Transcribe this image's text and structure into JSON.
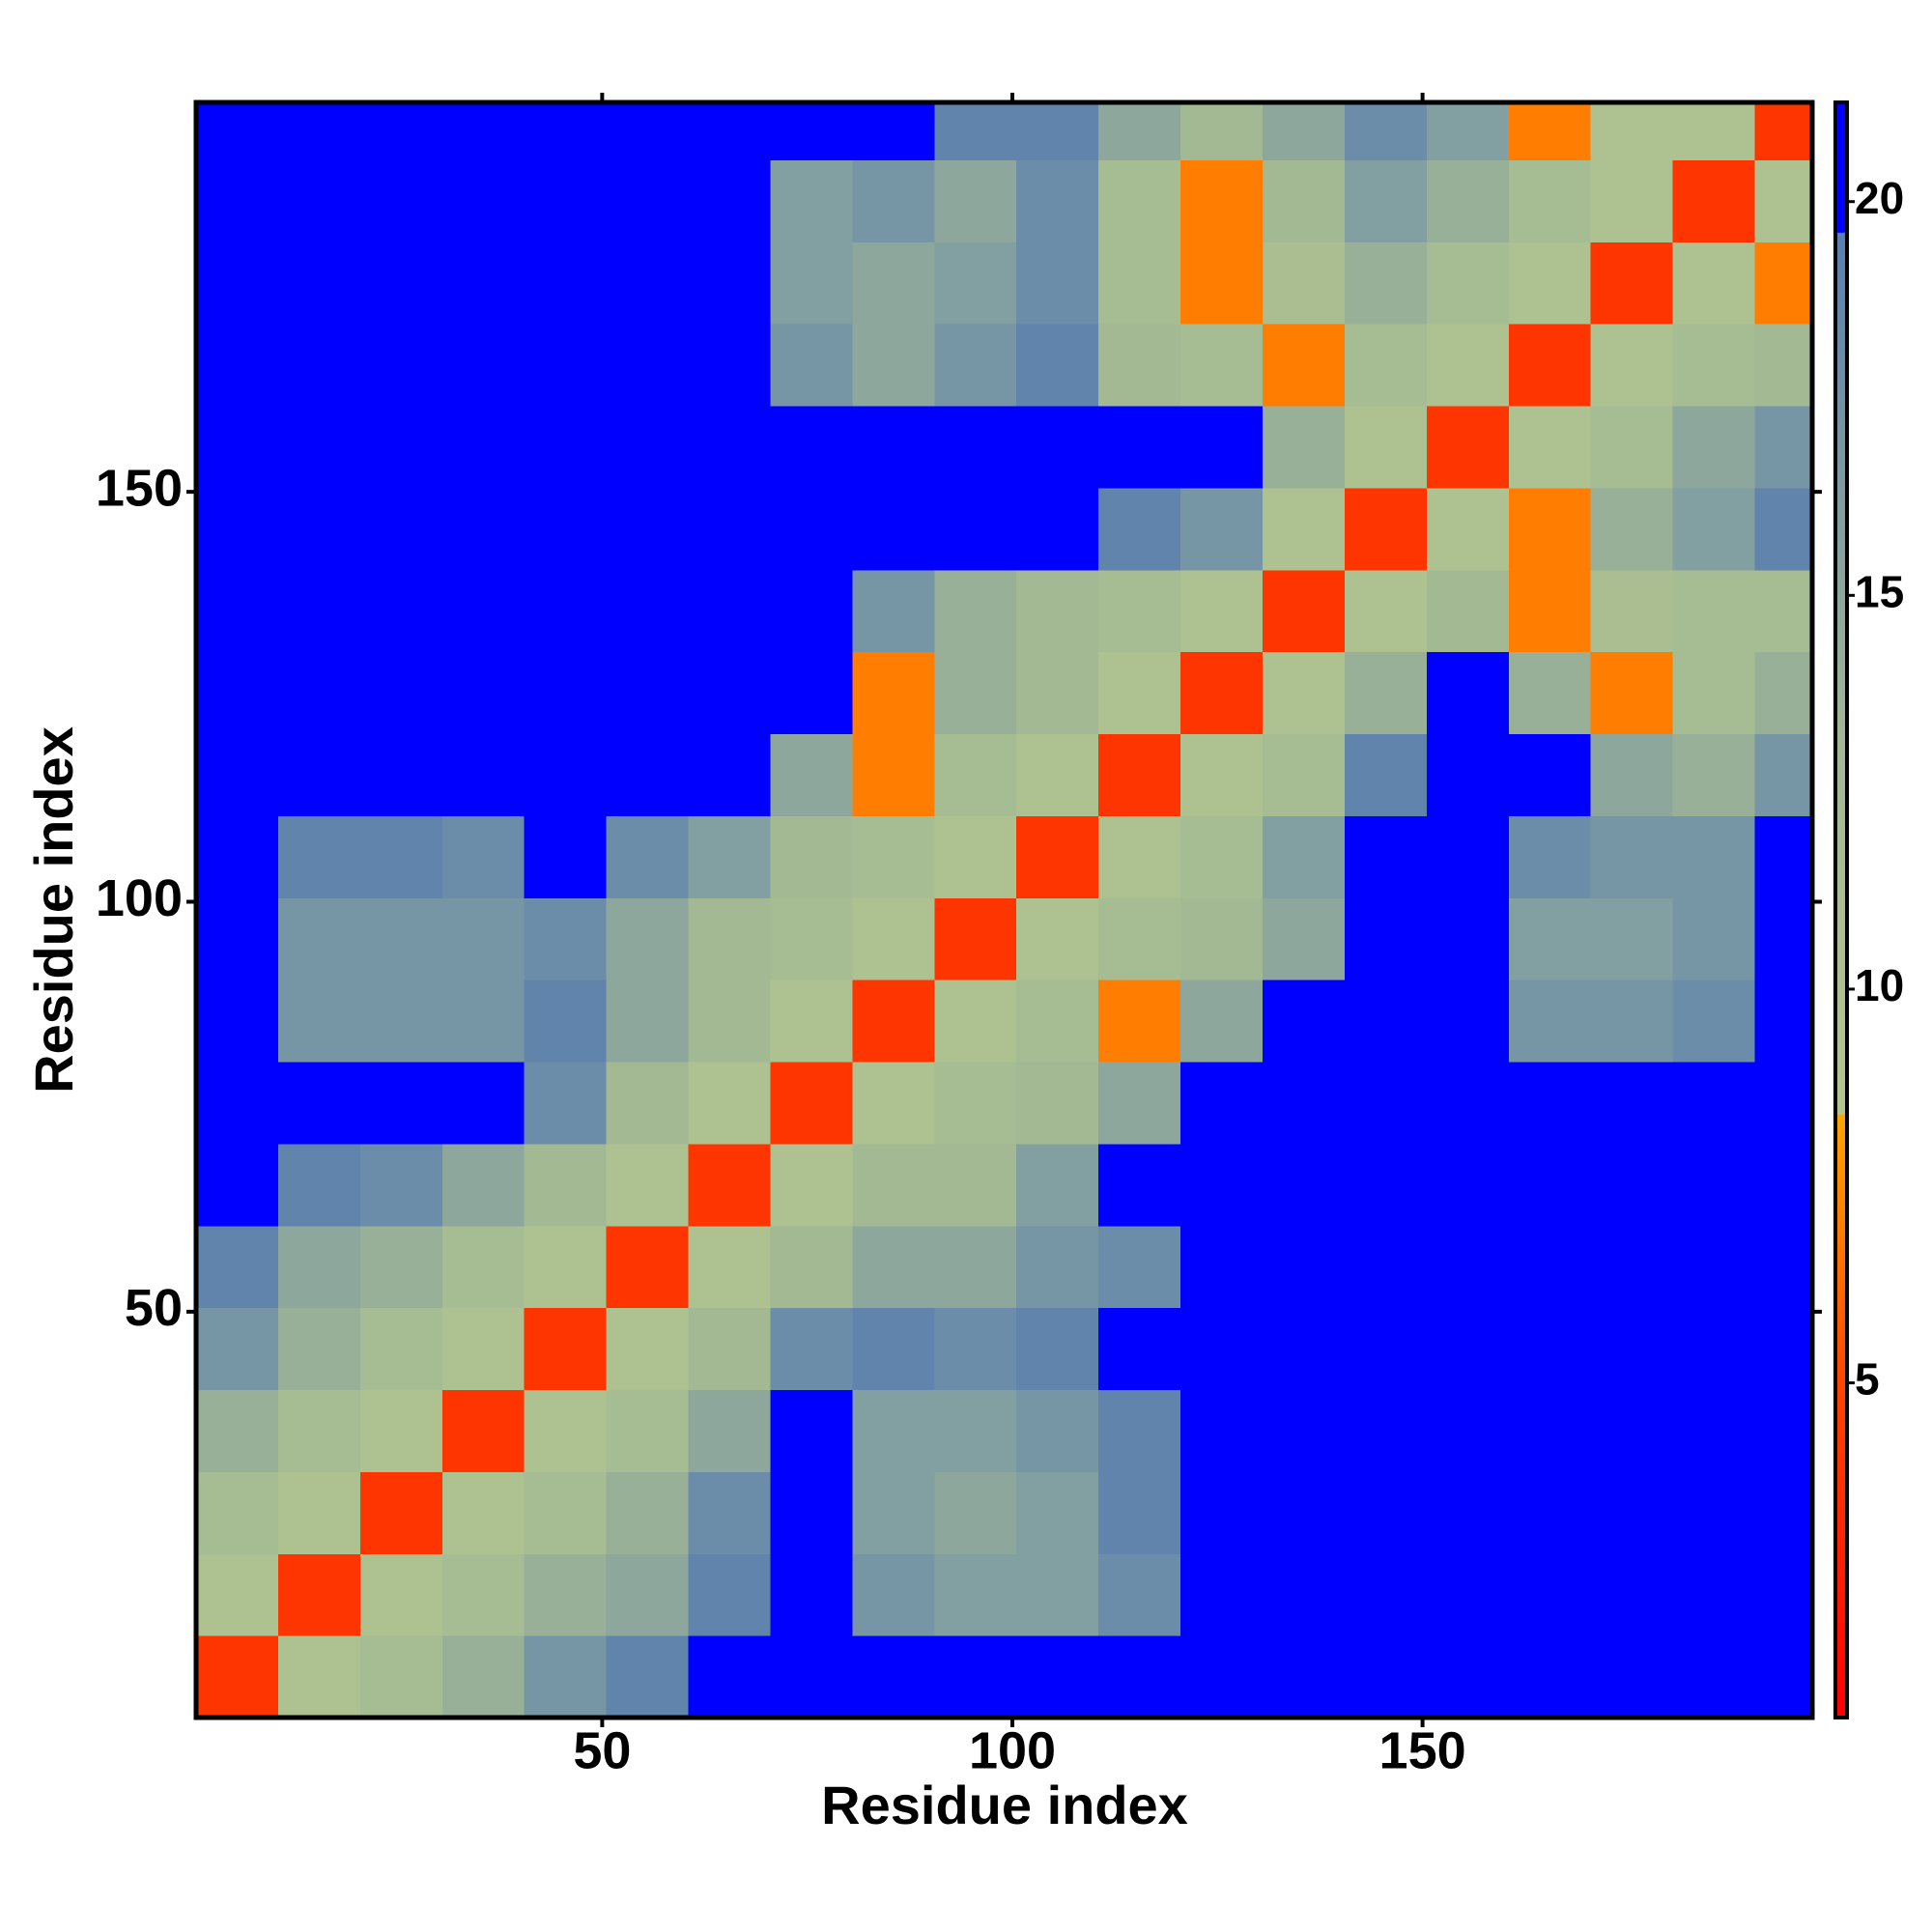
{
  "chart_data": {
    "type": "heatmap",
    "xlabel": "Residue index",
    "ylabel": "Residue index",
    "xlim": [
      0.5,
      197.5
    ],
    "ylim": [
      0.5,
      197.5
    ],
    "xticks": [
      50,
      100,
      150
    ],
    "yticks": [
      50,
      100,
      150
    ],
    "xbins": [
      0.5,
      10.5,
      20.5,
      30.5,
      40.5,
      50.5,
      60.5,
      70.5,
      80.5,
      90.5,
      100.5,
      110.5,
      120.5,
      130.5,
      140.5,
      150.5,
      160.5,
      170.5,
      180.5,
      190.5,
      197.5
    ],
    "ybins": [
      0.5,
      10.5,
      20.5,
      30.5,
      40.5,
      50.5,
      60.5,
      70.5,
      80.5,
      90.5,
      100.5,
      110.5,
      120.5,
      130.5,
      140.5,
      150.5,
      160.5,
      170.5,
      180.5,
      190.5,
      197.5
    ],
    "z": [
      [
        4,
        10,
        12,
        14,
        17,
        19,
        21,
        21,
        21,
        21,
        21,
        21,
        21,
        21,
        21,
        21,
        21,
        21,
        21,
        21
      ],
      [
        10,
        4,
        10,
        12,
        14,
        15,
        19,
        21,
        17,
        16,
        16,
        18,
        21,
        21,
        21,
        21,
        21,
        21,
        21,
        21
      ],
      [
        12,
        10,
        4,
        10,
        12,
        14,
        18,
        21,
        16,
        15,
        16,
        19,
        21,
        21,
        21,
        21,
        21,
        21,
        21,
        21
      ],
      [
        14,
        12,
        10,
        4,
        10,
        12,
        15,
        21,
        16,
        16,
        17,
        19,
        21,
        21,
        21,
        21,
        21,
        21,
        21,
        21
      ],
      [
        17,
        14,
        12,
        10,
        4,
        10,
        13,
        18,
        19,
        18,
        19,
        21,
        21,
        21,
        21,
        21,
        21,
        21,
        21,
        21
      ],
      [
        19,
        15,
        14,
        12,
        10,
        4,
        10,
        13,
        15,
        15,
        17,
        18,
        21,
        21,
        21,
        21,
        21,
        21,
        21,
        21
      ],
      [
        21,
        19,
        18,
        15,
        13,
        10,
        4,
        10,
        13,
        13,
        16,
        21,
        21,
        21,
        21,
        21,
        21,
        21,
        21,
        21
      ],
      [
        21,
        21,
        21,
        21,
        18,
        13,
        10,
        4,
        10,
        12,
        13,
        15,
        21,
        21,
        21,
        21,
        21,
        21,
        21,
        21
      ],
      [
        21,
        17,
        17,
        17,
        19,
        15,
        13,
        10,
        4,
        10,
        12,
        7,
        15,
        21,
        21,
        21,
        17,
        17,
        18,
        21
      ],
      [
        21,
        17,
        17,
        17,
        18,
        15,
        13,
        12,
        10,
        4,
        10,
        12,
        13,
        15,
        21,
        21,
        16,
        16,
        17,
        21
      ],
      [
        21,
        19,
        19,
        18,
        21,
        18,
        16,
        13,
        12,
        10,
        4,
        10,
        12,
        16,
        21,
        21,
        18,
        17,
        17,
        21
      ],
      [
        21,
        21,
        21,
        21,
        21,
        21,
        21,
        15,
        7,
        12,
        10,
        4,
        10,
        12,
        19,
        21,
        21,
        15,
        14,
        17
      ],
      [
        21,
        21,
        21,
        21,
        21,
        21,
        21,
        21,
        7,
        14,
        13,
        10,
        4,
        10,
        14,
        21,
        14,
        7,
        12,
        14
      ],
      [
        21,
        21,
        21,
        21,
        21,
        21,
        21,
        21,
        17,
        14,
        13,
        12,
        10,
        4,
        10,
        13,
        7,
        11,
        12,
        12
      ],
      [
        21,
        21,
        21,
        21,
        21,
        21,
        21,
        21,
        21,
        21,
        21,
        19,
        17,
        10,
        4,
        10,
        7,
        14,
        16,
        19
      ],
      [
        21,
        21,
        21,
        21,
        21,
        21,
        21,
        21,
        21,
        21,
        21,
        21,
        21,
        14,
        10,
        4,
        10,
        12,
        15,
        17
      ],
      [
        21,
        21,
        21,
        21,
        21,
        21,
        21,
        17,
        15,
        17,
        19,
        13,
        12,
        7,
        12,
        10,
        4,
        10,
        12,
        13
      ],
      [
        21,
        21,
        21,
        21,
        21,
        21,
        21,
        16,
        15,
        16,
        18,
        12,
        7,
        11,
        14,
        12,
        10,
        4,
        10,
        7
      ],
      [
        21,
        21,
        21,
        21,
        21,
        21,
        21,
        16,
        17,
        15,
        18,
        12,
        7,
        13,
        16,
        14,
        12,
        10,
        4,
        10
      ],
      [
        21,
        21,
        21,
        21,
        21,
        21,
        21,
        21,
        21,
        19,
        19,
        15,
        13,
        15,
        18,
        16,
        7,
        10,
        10,
        4
      ]
    ],
    "colorscale": [
      [
        0.75,
        "#ff0000"
      ],
      [
        5,
        "#ff4500"
      ],
      [
        8.4,
        "#ffa500"
      ],
      [
        8.41,
        "#b3c58f"
      ],
      [
        13,
        "#a3b994"
      ],
      [
        19.6,
        "#5a7fb0"
      ],
      [
        19.61,
        "#0000ff"
      ],
      [
        21.26,
        "#0000ff"
      ]
    ],
    "colorbar": {
      "lim": [
        0.75,
        21.26
      ],
      "ticks": [
        5,
        10,
        15,
        20
      ]
    }
  }
}
